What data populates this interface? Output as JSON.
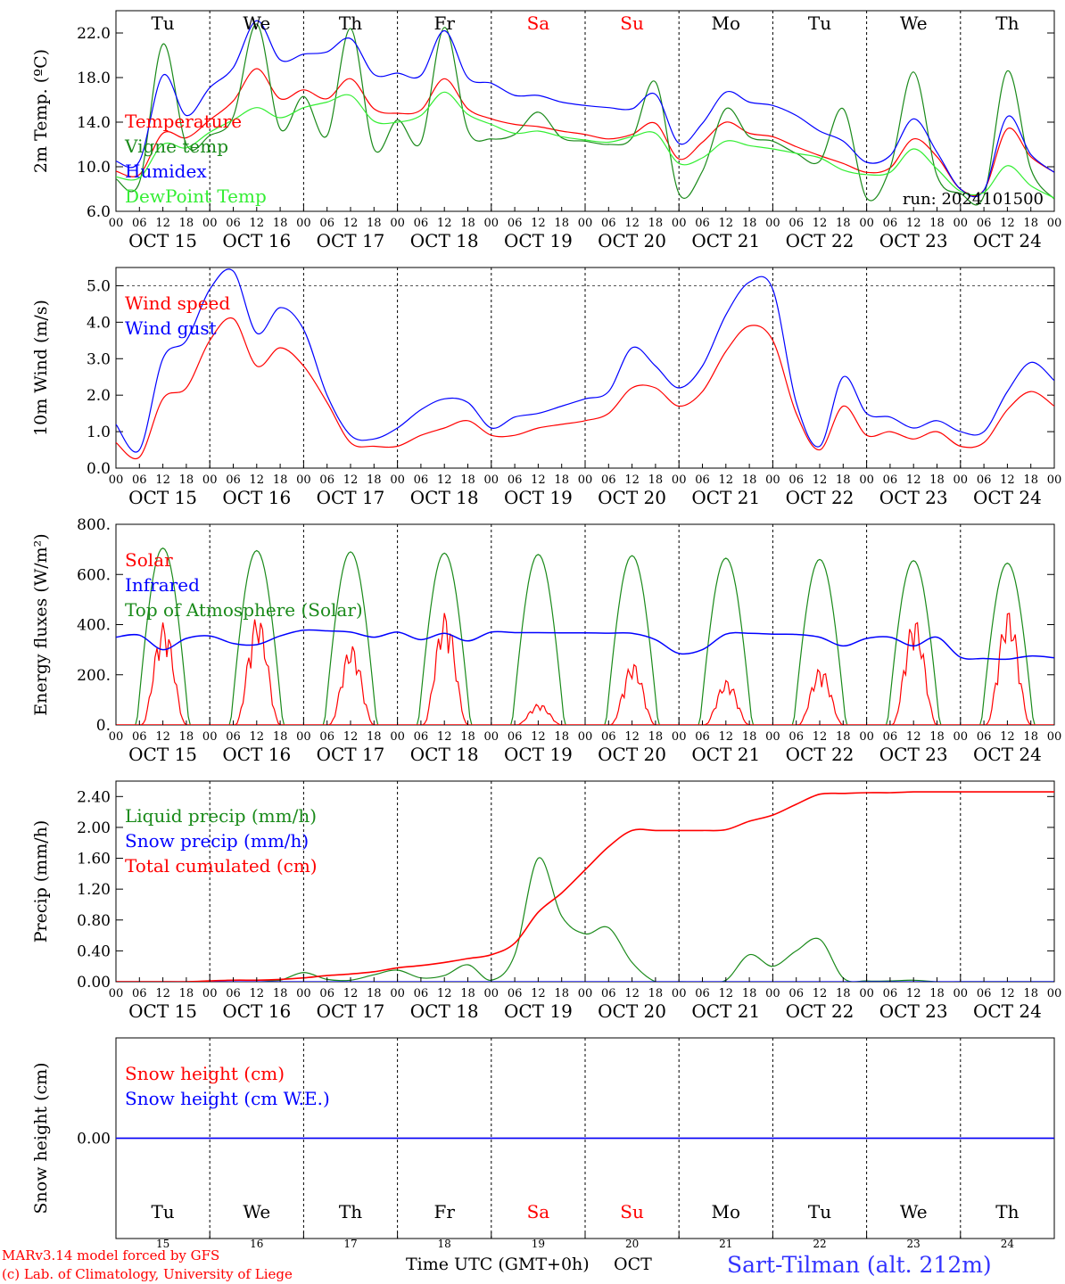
{
  "days": [
    "OCT 15",
    "OCT 16",
    "OCT 17",
    "OCT 18",
    "OCT 19",
    "OCT 20",
    "OCT 21",
    "OCT 22",
    "OCT 23",
    "OCT 24"
  ],
  "weekdays": [
    {
      "label": "Tu",
      "weekend": false
    },
    {
      "label": "We",
      "weekend": false
    },
    {
      "label": "Th",
      "weekend": false
    },
    {
      "label": "Fr",
      "weekend": false
    },
    {
      "label": "Sa",
      "weekend": true
    },
    {
      "label": "Su",
      "weekend": true
    },
    {
      "label": "Mo",
      "weekend": false
    },
    {
      "label": "Tu",
      "weekend": false
    },
    {
      "label": "We",
      "weekend": false
    },
    {
      "label": "Th",
      "weekend": false
    }
  ],
  "day_numbers": [
    "15",
    "16",
    "17",
    "18",
    "19",
    "20",
    "21",
    "22",
    "23",
    "24"
  ],
  "hour_ticks": [
    "00",
    "06",
    "12",
    "18"
  ],
  "final_hour_tick": "00",
  "colors": {
    "red": "#ff0000",
    "green": "#1a8a1a",
    "blue": "#0000ff",
    "light_green": "#33ee33",
    "purple": "#8040a0",
    "weekend": "#ff0000",
    "station": "#3333ff"
  },
  "footer": {
    "credit_line1": "MARv3.14 model forced by GFS",
    "credit_line2": "(c) Lab. of Climatology, University of Liege",
    "time_label": "Time UTC (GMT+0h)",
    "month_label": "OCT",
    "station": "Sart-Tilman (alt. 212m)"
  },
  "chart_data": [
    {
      "type": "line",
      "ylabel": "2m Temp. (ºC)",
      "ylim": [
        6,
        24
      ],
      "yticks": [
        "6.0",
        "10.0",
        "14.0",
        "18.0",
        "22.0"
      ],
      "annotation": "run: 2024101500",
      "show_weekdays": true,
      "x_hours": [
        0,
        6,
        12,
        18,
        24,
        30,
        36,
        42,
        48,
        54,
        60,
        66,
        72,
        78,
        84,
        90,
        96,
        102,
        108,
        114,
        120,
        126,
        132,
        138,
        144,
        150,
        156,
        162,
        168,
        174,
        180,
        186,
        192,
        198,
        204,
        210,
        216,
        222,
        228,
        234,
        240
      ],
      "series": [
        {
          "name": "Temperature",
          "color": "red",
          "values": [
            9.6,
            9.3,
            13.0,
            12.6,
            14.2,
            15.9,
            18.8,
            16.1,
            16.9,
            16.1,
            17.9,
            15.2,
            14.8,
            15.1,
            17.9,
            15.2,
            14.3,
            13.8,
            13.6,
            13.2,
            12.9,
            12.5,
            12.9,
            13.9,
            10.7,
            12.2,
            14.0,
            13.0,
            12.7,
            11.8,
            11.0,
            10.3,
            9.5,
            9.9,
            12.5,
            10.9,
            8.0,
            7.9,
            13.4,
            10.9,
            9.5
          ]
        },
        {
          "name": "Vigne temp",
          "color": "green",
          "values": [
            8.9,
            8.6,
            21.0,
            12.0,
            12.8,
            14.5,
            22.8,
            13.4,
            16.3,
            12.8,
            22.4,
            11.6,
            14.2,
            12.2,
            22.5,
            13.3,
            12.5,
            12.9,
            14.9,
            12.6,
            12.3,
            12.0,
            12.6,
            17.6,
            7.6,
            9.6,
            15.2,
            12.7,
            12.3,
            11.2,
            10.5,
            15.2,
            7.2,
            9.9,
            18.5,
            9.2,
            7.6,
            7.4,
            18.6,
            9.8,
            7.1
          ]
        },
        {
          "name": "Humidex",
          "color": "blue",
          "values": [
            10.5,
            10.5,
            18.2,
            14.6,
            17.1,
            18.9,
            23.1,
            19.6,
            20.1,
            20.3,
            21.5,
            18.3,
            18.4,
            18.2,
            22.2,
            18.0,
            17.5,
            16.4,
            16.4,
            15.8,
            15.5,
            15.3,
            15.2,
            16.5,
            12.1,
            13.9,
            16.7,
            15.8,
            15.5,
            14.6,
            13.2,
            12.3,
            10.4,
            11.0,
            14.3,
            11.3,
            8.0,
            7.9,
            14.5,
            11.1,
            9.5
          ]
        },
        {
          "name": "DewPoint Temp",
          "color": "light_green",
          "values": [
            9.1,
            9.0,
            12.0,
            11.7,
            13.1,
            14.2,
            15.3,
            14.4,
            15.3,
            15.8,
            16.4,
            14.1,
            14.0,
            14.6,
            16.7,
            14.7,
            13.8,
            13.0,
            13.2,
            12.7,
            12.4,
            12.2,
            12.7,
            13.0,
            10.3,
            10.8,
            12.3,
            11.9,
            11.6,
            11.2,
            10.8,
            9.7,
            9.3,
            9.5,
            11.6,
            9.8,
            7.8,
            7.7,
            10.1,
            8.3,
            7.2
          ]
        }
      ]
    },
    {
      "type": "line",
      "ylabel": "10m Wind (m/s)",
      "ylim": [
        0,
        5.5
      ],
      "yticks": [
        "0.0",
        "1.0",
        "2.0",
        "3.0",
        "4.0",
        "5.0"
      ],
      "dashed_y": 5,
      "x_hours": [
        0,
        6,
        12,
        18,
        24,
        30,
        36,
        42,
        48,
        54,
        60,
        66,
        72,
        78,
        84,
        90,
        96,
        102,
        108,
        114,
        120,
        126,
        132,
        138,
        144,
        150,
        156,
        162,
        168,
        174,
        180,
        186,
        192,
        198,
        204,
        210,
        216,
        222,
        228,
        234,
        240
      ],
      "series": [
        {
          "name": "Wind speed",
          "color": "red",
          "values": [
            0.7,
            0.3,
            1.9,
            2.2,
            3.5,
            4.1,
            2.8,
            3.3,
            2.8,
            1.8,
            0.7,
            0.6,
            0.6,
            0.9,
            1.1,
            1.3,
            0.9,
            0.9,
            1.1,
            1.2,
            1.3,
            1.5,
            2.2,
            2.2,
            1.7,
            2.1,
            3.2,
            3.9,
            3.5,
            1.5,
            0.5,
            1.7,
            0.9,
            1.0,
            0.8,
            1.0,
            0.6,
            0.7,
            1.6,
            2.1,
            1.7
          ]
        },
        {
          "name": "Wind gust",
          "color": "blue",
          "values": [
            1.2,
            0.5,
            3.0,
            3.5,
            4.9,
            5.4,
            3.7,
            4.4,
            3.8,
            2.0,
            0.9,
            0.8,
            1.1,
            1.6,
            1.9,
            1.8,
            1.1,
            1.4,
            1.5,
            1.7,
            1.9,
            2.1,
            3.3,
            2.8,
            2.2,
            2.8,
            4.2,
            5.1,
            4.9,
            1.8,
            0.6,
            2.5,
            1.5,
            1.4,
            1.1,
            1.3,
            1.0,
            1.0,
            2.1,
            2.9,
            2.4
          ]
        }
      ]
    },
    {
      "type": "line",
      "ylabel": "Energy fluxes (W/m²)",
      "ylim": [
        0,
        800
      ],
      "yticks": [
        "0.",
        "200.",
        "400.",
        "600.",
        "800."
      ],
      "solar_peaks": [
        410,
        440,
        320,
        450,
        85,
        250,
        180,
        230,
        430,
        460
      ],
      "toa_peaks": [
        705,
        695,
        690,
        685,
        680,
        675,
        665,
        660,
        655,
        645
      ],
      "infrared": {
        "x_hours": [
          0,
          6,
          12,
          18,
          24,
          30,
          36,
          42,
          48,
          54,
          60,
          66,
          72,
          78,
          84,
          90,
          96,
          102,
          108,
          114,
          120,
          126,
          132,
          138,
          144,
          150,
          156,
          162,
          168,
          174,
          180,
          186,
          192,
          198,
          204,
          210,
          216,
          222,
          228,
          234,
          240
        ],
        "values": [
          350,
          358,
          300,
          345,
          355,
          325,
          320,
          355,
          378,
          375,
          370,
          350,
          370,
          340,
          365,
          335,
          370,
          368,
          368,
          367,
          367,
          366,
          365,
          340,
          285,
          300,
          362,
          365,
          362,
          361,
          350,
          315,
          345,
          350,
          315,
          350,
          270,
          265,
          262,
          275,
          268
        ]
      },
      "series": [
        {
          "name": "Solar",
          "color": "red"
        },
        {
          "name": "Infrared",
          "color": "blue"
        },
        {
          "name": "Top of Atmosphere (Solar)",
          "color": "green"
        }
      ]
    },
    {
      "type": "line",
      "ylabel": "Precip (mm/h)",
      "ylim": [
        0,
        2.6
      ],
      "yticks": [
        "0.00",
        "0.40",
        "0.80",
        "1.20",
        "1.60",
        "2.00",
        "2.40"
      ],
      "x_hours": [
        0,
        6,
        12,
        18,
        24,
        30,
        36,
        42,
        48,
        54,
        60,
        66,
        72,
        78,
        84,
        90,
        96,
        102,
        108,
        114,
        120,
        126,
        132,
        138,
        144,
        150,
        156,
        162,
        168,
        174,
        180,
        186,
        192,
        198,
        204,
        210,
        216,
        222,
        228,
        234,
        240
      ],
      "series": [
        {
          "name": "Liquid precip (mm/h)",
          "color": "green",
          "values": [
            0,
            0,
            0,
            0,
            0.01,
            0.02,
            0.02,
            0.02,
            0.12,
            0.03,
            0.02,
            0.09,
            0.15,
            0.05,
            0.08,
            0.22,
            0.02,
            0.35,
            1.6,
            0.85,
            0.62,
            0.7,
            0.25,
            0,
            0,
            0,
            0.02,
            0.35,
            0.2,
            0.4,
            0.55,
            0.05,
            0.01,
            0.01,
            0.02,
            0,
            0,
            0,
            0,
            0,
            0
          ]
        },
        {
          "name": "Snow precip (mm/h)",
          "color": "blue",
          "values": [
            0,
            0,
            0,
            0,
            0,
            0,
            0,
            0,
            0,
            0,
            0,
            0,
            0,
            0,
            0,
            0,
            0,
            0,
            0,
            0,
            0,
            0,
            0,
            0,
            0,
            0,
            0,
            0,
            0,
            0,
            0,
            0,
            0,
            0,
            0,
            0,
            0,
            0,
            0,
            0,
            0
          ]
        },
        {
          "name": "Total cumulated (cm)",
          "color": "red",
          "values": [
            0,
            0,
            0,
            0,
            0.01,
            0.02,
            0.02,
            0.03,
            0.05,
            0.08,
            0.1,
            0.13,
            0.18,
            0.21,
            0.25,
            0.3,
            0.35,
            0.5,
            0.9,
            1.15,
            1.45,
            1.75,
            1.96,
            1.96,
            1.96,
            1.96,
            1.97,
            2.08,
            2.16,
            2.3,
            2.43,
            2.44,
            2.45,
            2.45,
            2.46,
            2.46,
            2.46,
            2.46,
            2.46,
            2.46,
            2.46
          ]
        }
      ]
    },
    {
      "type": "line",
      "ylabel": "Snow height (cm)",
      "ylim": [
        -1,
        1
      ],
      "yticks": [
        "0.00"
      ],
      "show_weekdays": true,
      "show_daynums": true,
      "x_hours": [
        0,
        240
      ],
      "series": [
        {
          "name": "Snow height (cm)",
          "color": "red",
          "values": [
            0,
            0
          ]
        },
        {
          "name": "Snow height (cm W.E.)",
          "color": "blue",
          "values": [
            0,
            0
          ]
        }
      ]
    }
  ]
}
